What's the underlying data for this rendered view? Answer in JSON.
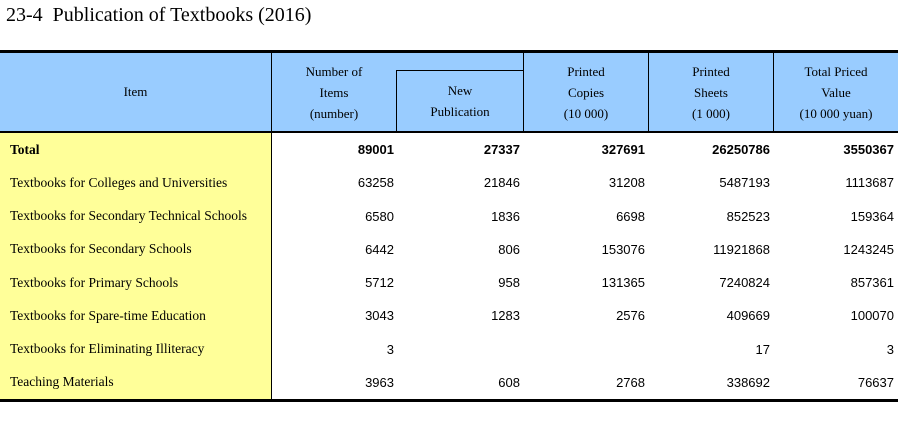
{
  "title": "23-4  Publication of Textbooks (2016)",
  "colors": {
    "header_bg": "#99CCFF",
    "stub_bg": "#FFFF99",
    "border": "#000000"
  },
  "table": {
    "columns": {
      "item": "Item",
      "number_of_items": [
        "Number of",
        "Items",
        "(number)"
      ],
      "new_publication": [
        "New",
        "Publication"
      ],
      "printed_copies": [
        "Printed",
        "Copies",
        "(10 000)"
      ],
      "printed_sheets": [
        "Printed",
        "Sheets",
        "(1 000)"
      ],
      "total_priced_value": [
        "Total Priced",
        "Value",
        "(10 000 yuan)"
      ]
    },
    "rows": [
      {
        "label": "Total",
        "values": [
          "89001",
          "27337",
          "327691",
          "26250786",
          "3550367"
        ]
      },
      {
        "label": "Textbooks for Colleges and Universities",
        "values": [
          "63258",
          "21846",
          "31208",
          "5487193",
          "1113687"
        ]
      },
      {
        "label": "Textbooks for Secondary Technical Schools",
        "values": [
          "6580",
          "1836",
          "6698",
          "852523",
          "159364"
        ]
      },
      {
        "label": "Textbooks for Secondary Schools",
        "values": [
          "6442",
          "806",
          "153076",
          "11921868",
          "1243245"
        ]
      },
      {
        "label": "Textbooks for Primary Schools",
        "values": [
          "5712",
          "958",
          "131365",
          "7240824",
          "857361"
        ]
      },
      {
        "label": "Textbooks for Spare-time Education",
        "values": [
          "3043",
          "1283",
          "2576",
          "409669",
          "100070"
        ]
      },
      {
        "label": "Textbooks for Eliminating Illiteracy",
        "values": [
          "3",
          "",
          "",
          "17",
          "3"
        ]
      },
      {
        "label": "Teaching Materials",
        "values": [
          "3963",
          "608",
          "2768",
          "338692",
          "76637"
        ]
      }
    ]
  }
}
